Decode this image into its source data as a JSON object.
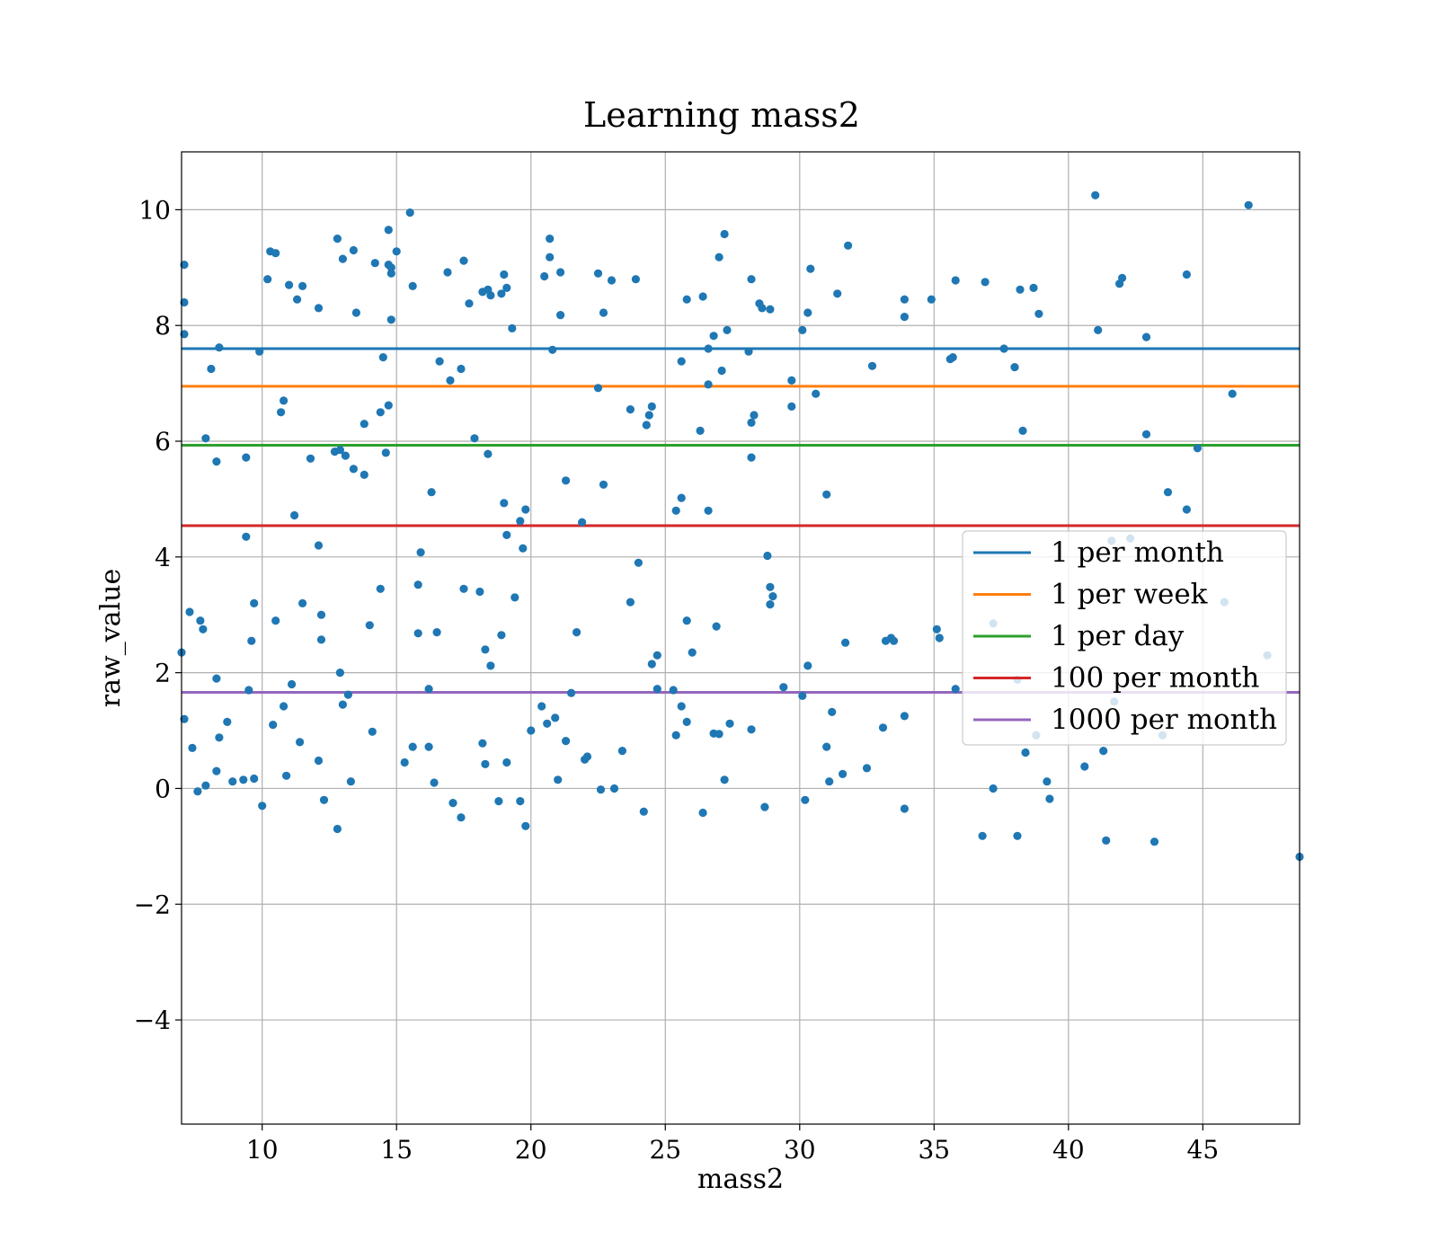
{
  "chart_data": {
    "type": "scatter",
    "title": "Learning mass2",
    "xlabel": "mass2",
    "ylabel": "raw_value",
    "xlim": [
      7.0,
      48.6
    ],
    "ylim": [
      -5.8,
      11.0
    ],
    "xticks": [
      10,
      15,
      20,
      25,
      30,
      35,
      40,
      45
    ],
    "xtick_labels": [
      "10",
      "15",
      "20",
      "25",
      "30",
      "35",
      "40",
      "45"
    ],
    "yticks": [
      -4,
      -2,
      0,
      2,
      4,
      6,
      8,
      10
    ],
    "ytick_labels": [
      "−4",
      "−2",
      "0",
      "2",
      "4",
      "6",
      "8",
      "10"
    ],
    "grid": true,
    "legend_placement": "center-right",
    "point_color": "#1f77b4",
    "hlines": [
      {
        "name": "1 per month",
        "y": 7.6,
        "color": "#1f77b4"
      },
      {
        "name": "1 per week",
        "y": 6.95,
        "color": "#ff7f0e"
      },
      {
        "name": "1 per day",
        "y": 5.93,
        "color": "#2ca02c"
      },
      {
        "name": "100 per month",
        "y": 4.54,
        "color": "#d62728"
      },
      {
        "name": "1000 per month",
        "y": 1.66,
        "color": "#9467bd"
      }
    ],
    "points": [
      [
        7.1,
        9.05
      ],
      [
        7.1,
        8.4
      ],
      [
        7.1,
        7.85
      ],
      [
        7.0,
        2.35
      ],
      [
        7.1,
        1.2
      ],
      [
        7.3,
        3.05
      ],
      [
        7.7,
        2.9
      ],
      [
        7.8,
        2.75
      ],
      [
        8.3,
        1.9
      ],
      [
        8.4,
        7.62
      ],
      [
        8.1,
        7.25
      ],
      [
        8.3,
        5.65
      ],
      [
        7.9,
        6.05
      ],
      [
        9.4,
        5.72
      ],
      [
        9.4,
        4.35
      ],
      [
        9.6,
        2.55
      ],
      [
        9.7,
        3.2
      ],
      [
        9.5,
        1.7
      ],
      [
        9.9,
        7.55
      ],
      [
        10.2,
        8.8
      ],
      [
        10.3,
        9.28
      ],
      [
        10.5,
        9.25
      ],
      [
        10.5,
        2.9
      ],
      [
        10.7,
        6.5
      ],
      [
        10.8,
        6.7
      ],
      [
        11.0,
        8.7
      ],
      [
        11.2,
        4.72
      ],
      [
        11.3,
        8.45
      ],
      [
        11.5,
        8.68
      ],
      [
        11.5,
        3.2
      ],
      [
        11.8,
        5.7
      ],
      [
        12.1,
        8.3
      ],
      [
        12.1,
        4.2
      ],
      [
        12.2,
        3.0
      ],
      [
        12.2,
        2.57
      ],
      [
        12.8,
        9.5
      ],
      [
        13.0,
        9.15
      ],
      [
        13.4,
        9.3
      ],
      [
        12.7,
        5.82
      ],
      [
        12.9,
        5.85
      ],
      [
        13.1,
        5.75
      ],
      [
        13.4,
        5.52
      ],
      [
        13.5,
        8.22
      ],
      [
        13.8,
        6.3
      ],
      [
        13.8,
        5.42
      ],
      [
        12.9,
        2.0
      ],
      [
        13.2,
        1.62
      ],
      [
        14.0,
        2.82
      ],
      [
        14.2,
        9.08
      ],
      [
        14.4,
        6.5
      ],
      [
        14.5,
        7.45
      ],
      [
        14.7,
        9.05
      ],
      [
        14.8,
        9.0
      ],
      [
        14.8,
        8.9
      ],
      [
        14.7,
        9.65
      ],
      [
        14.7,
        6.62
      ],
      [
        14.6,
        5.8
      ],
      [
        14.8,
        8.1
      ],
      [
        15.0,
        9.28
      ],
      [
        15.5,
        9.95
      ],
      [
        15.6,
        8.68
      ],
      [
        15.9,
        4.08
      ],
      [
        15.8,
        3.52
      ],
      [
        16.3,
        5.12
      ],
      [
        16.5,
        2.7
      ],
      [
        15.8,
        2.68
      ],
      [
        16.6,
        7.38
      ],
      [
        16.9,
        8.92
      ],
      [
        17.0,
        7.05
      ],
      [
        17.5,
        9.12
      ],
      [
        17.4,
        7.25
      ],
      [
        17.5,
        3.45
      ],
      [
        17.7,
        8.38
      ],
      [
        17.9,
        6.05
      ],
      [
        18.1,
        3.4
      ],
      [
        18.2,
        8.58
      ],
      [
        18.4,
        8.62
      ],
      [
        18.4,
        5.78
      ],
      [
        18.5,
        8.52
      ],
      [
        18.9,
        8.55
      ],
      [
        19.0,
        8.88
      ],
      [
        19.1,
        8.65
      ],
      [
        19.0,
        4.93
      ],
      [
        19.3,
        7.95
      ],
      [
        19.1,
        4.38
      ],
      [
        19.6,
        4.62
      ],
      [
        19.8,
        4.82
      ],
      [
        19.7,
        4.15
      ],
      [
        19.4,
        3.3
      ],
      [
        18.9,
        2.65
      ],
      [
        18.3,
        2.4
      ],
      [
        18.5,
        2.12
      ],
      [
        20.5,
        8.85
      ],
      [
        20.7,
        9.18
      ],
      [
        20.7,
        9.5
      ],
      [
        21.1,
        8.92
      ],
      [
        21.1,
        8.18
      ],
      [
        20.8,
        7.58
      ],
      [
        21.3,
        5.32
      ],
      [
        21.9,
        4.6
      ],
      [
        21.7,
        2.7
      ],
      [
        22.5,
        8.9
      ],
      [
        22.7,
        8.22
      ],
      [
        23.0,
        8.78
      ],
      [
        22.5,
        6.92
      ],
      [
        22.7,
        5.25
      ],
      [
        23.9,
        8.8
      ],
      [
        23.7,
        6.55
      ],
      [
        24.3,
        6.28
      ],
      [
        24.4,
        6.45
      ],
      [
        24.5,
        6.6
      ],
      [
        24.0,
        3.9
      ],
      [
        23.7,
        3.22
      ],
      [
        24.7,
        2.3
      ],
      [
        24.5,
        2.15
      ],
      [
        25.8,
        8.45
      ],
      [
        26.4,
        8.5
      ],
      [
        26.6,
        7.6
      ],
      [
        26.6,
        6.98
      ],
      [
        26.8,
        7.82
      ],
      [
        27.0,
        9.18
      ],
      [
        27.2,
        9.58
      ],
      [
        27.3,
        7.92
      ],
      [
        27.1,
        7.22
      ],
      [
        25.6,
        7.38
      ],
      [
        26.3,
        6.18
      ],
      [
        25.6,
        5.02
      ],
      [
        25.4,
        4.8
      ],
      [
        26.6,
        4.8
      ],
      [
        25.8,
        2.9
      ],
      [
        26.9,
        2.8
      ],
      [
        26.0,
        2.35
      ],
      [
        28.2,
        8.8
      ],
      [
        28.5,
        8.38
      ],
      [
        28.6,
        8.3
      ],
      [
        28.9,
        8.28
      ],
      [
        28.1,
        7.55
      ],
      [
        28.2,
        6.32
      ],
      [
        28.3,
        6.45
      ],
      [
        28.2,
        5.72
      ],
      [
        28.8,
        4.02
      ],
      [
        28.9,
        3.48
      ],
      [
        29.0,
        3.32
      ],
      [
        28.9,
        3.18
      ],
      [
        29.7,
        7.05
      ],
      [
        29.7,
        6.6
      ],
      [
        30.1,
        7.92
      ],
      [
        30.3,
        8.22
      ],
      [
        30.4,
        8.98
      ],
      [
        30.6,
        6.82
      ],
      [
        31.0,
        5.08
      ],
      [
        31.4,
        8.55
      ],
      [
        31.8,
        9.38
      ],
      [
        30.3,
        2.12
      ],
      [
        31.7,
        2.52
      ],
      [
        32.7,
        7.3
      ],
      [
        33.2,
        2.55
      ],
      [
        33.4,
        2.6
      ],
      [
        33.5,
        2.55
      ],
      [
        33.9,
        8.45
      ],
      [
        33.9,
        8.15
      ],
      [
        34.9,
        8.45
      ],
      [
        35.6,
        7.42
      ],
      [
        35.7,
        7.45
      ],
      [
        35.8,
        8.78
      ],
      [
        35.1,
        2.75
      ],
      [
        35.2,
        2.6
      ],
      [
        36.9,
        8.75
      ],
      [
        37.6,
        7.6
      ],
      [
        38.0,
        7.28
      ],
      [
        38.2,
        8.62
      ],
      [
        38.7,
        8.65
      ],
      [
        38.3,
        6.18
      ],
      [
        38.9,
        8.2
      ],
      [
        41.0,
        10.25
      ],
      [
        41.1,
        7.92
      ],
      [
        41.9,
        8.72
      ],
      [
        42.0,
        8.82
      ],
      [
        42.9,
        7.8
      ],
      [
        42.9,
        6.12
      ],
      [
        43.7,
        5.12
      ],
      [
        44.4,
        8.88
      ],
      [
        44.8,
        5.88
      ],
      [
        44.4,
        4.82
      ],
      [
        46.1,
        6.82
      ],
      [
        46.7,
        10.08
      ],
      [
        47.4,
        2.3
      ],
      [
        45.8,
        3.22
      ],
      [
        41.6,
        4.28
      ],
      [
        42.3,
        4.32
      ],
      [
        37.2,
        2.85
      ],
      [
        38.1,
        1.88
      ],
      [
        35.8,
        1.72
      ],
      [
        38.8,
        0.92
      ],
      [
        43.5,
        0.92
      ],
      [
        41.7,
        1.5
      ],
      [
        7.4,
        0.7
      ],
      [
        7.6,
        -0.05
      ],
      [
        7.9,
        0.05
      ],
      [
        8.3,
        0.3
      ],
      [
        8.4,
        0.88
      ],
      [
        8.7,
        1.15
      ],
      [
        8.9,
        0.12
      ],
      [
        9.3,
        0.15
      ],
      [
        9.7,
        0.17
      ],
      [
        10.0,
        -0.3
      ],
      [
        10.4,
        1.1
      ],
      [
        10.8,
        1.42
      ],
      [
        10.9,
        0.22
      ],
      [
        11.1,
        1.8
      ],
      [
        11.4,
        0.8
      ],
      [
        12.1,
        0.48
      ],
      [
        12.3,
        -0.2
      ],
      [
        12.8,
        -0.7
      ],
      [
        13.0,
        1.45
      ],
      [
        13.3,
        0.12
      ],
      [
        14.1,
        0.98
      ],
      [
        14.4,
        3.45
      ],
      [
        15.3,
        0.45
      ],
      [
        15.6,
        0.72
      ],
      [
        16.2,
        0.72
      ],
      [
        16.4,
        0.1
      ],
      [
        16.2,
        1.72
      ],
      [
        17.1,
        -0.25
      ],
      [
        17.4,
        -0.5
      ],
      [
        18.2,
        0.78
      ],
      [
        18.3,
        0.42
      ],
      [
        18.8,
        -0.22
      ],
      [
        19.1,
        0.45
      ],
      [
        19.6,
        -0.22
      ],
      [
        19.8,
        -0.65
      ],
      [
        20.0,
        1.0
      ],
      [
        20.4,
        1.42
      ],
      [
        20.6,
        1.12
      ],
      [
        20.9,
        1.22
      ],
      [
        21.0,
        0.15
      ],
      [
        21.3,
        0.82
      ],
      [
        21.5,
        1.65
      ],
      [
        22.0,
        0.5
      ],
      [
        22.1,
        0.55
      ],
      [
        22.6,
        -0.02
      ],
      [
        23.1,
        0.0
      ],
      [
        23.4,
        0.65
      ],
      [
        24.2,
        -0.4
      ],
      [
        24.7,
        1.72
      ],
      [
        25.3,
        1.7
      ],
      [
        25.4,
        0.92
      ],
      [
        25.6,
        1.42
      ],
      [
        25.8,
        1.15
      ],
      [
        26.4,
        -0.42
      ],
      [
        26.8,
        0.95
      ],
      [
        27.0,
        0.94
      ],
      [
        27.2,
        0.15
      ],
      [
        27.4,
        1.12
      ],
      [
        28.2,
        1.02
      ],
      [
        28.7,
        -0.32
      ],
      [
        29.4,
        1.75
      ],
      [
        30.1,
        1.6
      ],
      [
        30.2,
        -0.2
      ],
      [
        31.0,
        0.72
      ],
      [
        31.1,
        0.12
      ],
      [
        31.2,
        1.32
      ],
      [
        31.6,
        0.25
      ],
      [
        32.5,
        0.35
      ],
      [
        33.1,
        1.05
      ],
      [
        33.9,
        1.25
      ],
      [
        33.9,
        -0.35
      ],
      [
        36.8,
        -0.82
      ],
      [
        37.2,
        0.0
      ],
      [
        38.1,
        -0.82
      ],
      [
        38.4,
        0.62
      ],
      [
        39.2,
        0.12
      ],
      [
        39.3,
        -0.18
      ],
      [
        40.6,
        0.38
      ],
      [
        41.3,
        0.65
      ],
      [
        41.4,
        -0.9
      ],
      [
        43.2,
        -0.92
      ],
      [
        48.6,
        -1.18
      ]
    ]
  }
}
